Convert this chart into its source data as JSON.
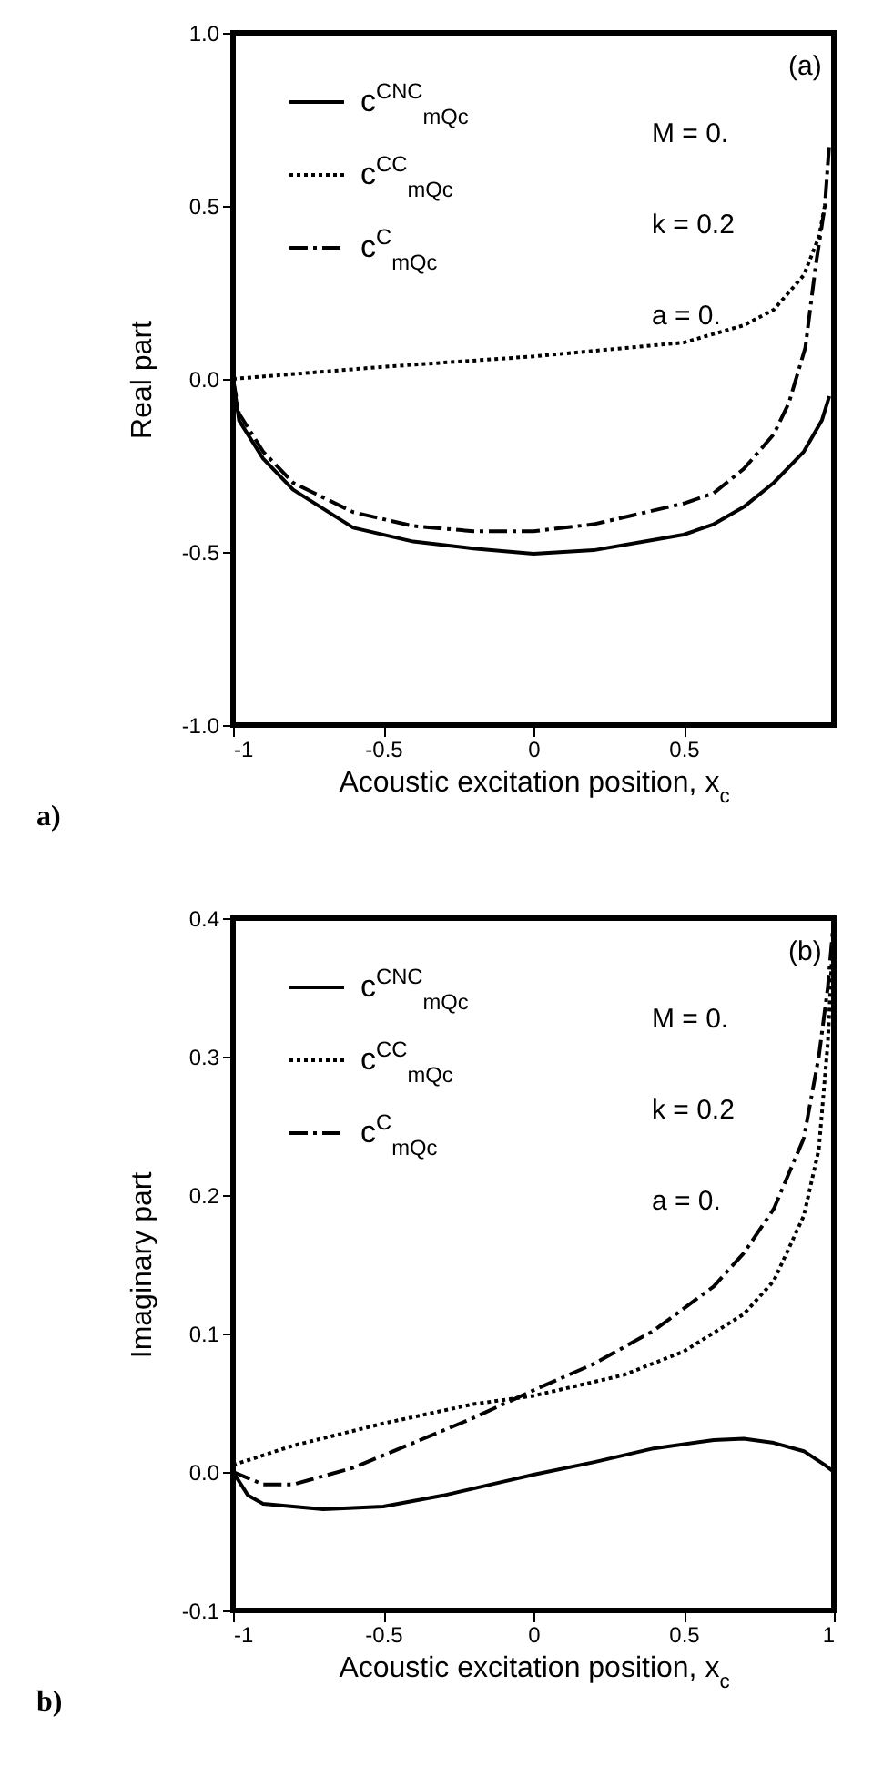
{
  "chart_data": [
    {
      "type": "line",
      "xlabel": "Acoustic excitation position, x$_{c}$",
      "ylabel": "Real part",
      "annotations": [
        "(a)",
        "M = 0.",
        "k = 0.2",
        "a = 0.",
        "a)"
      ],
      "xlim": [
        -1,
        1
      ],
      "ylim": [
        -1,
        1
      ],
      "xticks": [
        -1,
        -0.5,
        0,
        0.5
      ],
      "yticks": [
        {
          "value": -1,
          "label": "-1.0"
        },
        {
          "value": -0.5,
          "label": "-0.5"
        },
        {
          "value": 0,
          "label": "0.0"
        },
        {
          "value": 0.5,
          "label": "0.5"
        },
        {
          "value": 1,
          "label": "1.0"
        }
      ],
      "grid": false,
      "legend": "top left",
      "series": [
        {
          "name": "c$^{CNC}$$_{mQc}$",
          "color": "#000000",
          "line_style": "solid",
          "x": [
            -1,
            -0.98,
            -0.9,
            -0.8,
            -0.6,
            -0.4,
            -0.2,
            0,
            0.2,
            0.4,
            0.5,
            0.6,
            0.7,
            0.8,
            0.9,
            0.96,
            0.985
          ],
          "values": [
            0,
            -0.12,
            -0.23,
            -0.32,
            -0.43,
            -0.47,
            -0.49,
            -0.505,
            -0.495,
            -0.465,
            -0.45,
            -0.42,
            -0.37,
            -0.3,
            -0.21,
            -0.12,
            -0.05
          ]
        },
        {
          "name": "c$^{CC}$$_{mQc}$",
          "color": "#000000",
          "line_style": "dotted",
          "x": [
            -1,
            -0.5,
            0,
            0.5,
            0.7,
            0.8,
            0.9,
            0.95,
            0.97
          ],
          "values": [
            0,
            0.035,
            0.065,
            0.105,
            0.155,
            0.2,
            0.3,
            0.41,
            0.5
          ]
        },
        {
          "name": "c$^{C}$$_{mQc}$",
          "color": "#000000",
          "line_style": "dashed",
          "x": [
            -1,
            -0.98,
            -0.9,
            -0.8,
            -0.6,
            -0.4,
            -0.2,
            0,
            0.2,
            0.4,
            0.5,
            0.6,
            0.7,
            0.8,
            0.85,
            0.905,
            0.94,
            0.97,
            0.985
          ],
          "values": [
            0,
            -0.1,
            -0.21,
            -0.3,
            -0.385,
            -0.425,
            -0.44,
            -0.44,
            -0.42,
            -0.38,
            -0.36,
            -0.33,
            -0.26,
            -0.16,
            -0.07,
            0.09,
            0.33,
            0.5,
            0.68
          ]
        }
      ]
    },
    {
      "type": "line",
      "xlabel": "Acoustic excitation position, x$_{c}$",
      "ylabel": "Imaginary part",
      "annotations": [
        "(b)",
        "M = 0.",
        "k = 0.2",
        "a = 0.",
        "b)"
      ],
      "xlim": [
        -1,
        1
      ],
      "ylim": [
        -0.1,
        0.4
      ],
      "xticks": [
        -1,
        -0.5,
        0,
        0.5,
        1
      ],
      "yticks": [
        {
          "value": -0.1,
          "label": "-0.1"
        },
        {
          "value": 0,
          "label": "0.0"
        },
        {
          "value": 0.1,
          "label": "0.1"
        },
        {
          "value": 0.2,
          "label": "0.2"
        },
        {
          "value": 0.3,
          "label": "0.3"
        },
        {
          "value": 0.4,
          "label": "0.4"
        }
      ],
      "grid": false,
      "legend": "top left",
      "series": [
        {
          "name": "c$^{CNC}$$_{mQc}$",
          "color": "#000000",
          "line_style": "solid",
          "x": [
            -1,
            -0.95,
            -0.9,
            -0.7,
            -0.5,
            -0.3,
            -0.1,
            0,
            0.2,
            0.4,
            0.6,
            0.7,
            0.8,
            0.9,
            0.97,
            1
          ],
          "values": [
            0,
            -0.017,
            -0.023,
            -0.027,
            -0.025,
            -0.017,
            -0.007,
            -0.002,
            0.007,
            0.017,
            0.023,
            0.024,
            0.021,
            0.015,
            0.005,
            0
          ]
        },
        {
          "name": "c$^{CC}$$_{mQc}$",
          "color": "#000000",
          "line_style": "dotted",
          "x": [
            -1,
            -0.8,
            -0.5,
            -0.2,
            0,
            0.3,
            0.5,
            0.7,
            0.8,
            0.9,
            0.95,
            0.98,
            1
          ],
          "values": [
            0.005,
            0.019,
            0.035,
            0.049,
            0.055,
            0.07,
            0.087,
            0.114,
            0.138,
            0.185,
            0.233,
            0.31,
            0.4
          ]
        },
        {
          "name": "c$^{C}$$_{mQc}$",
          "color": "#000000",
          "line_style": "dashed",
          "x": [
            -1,
            -0.9,
            -0.8,
            -0.6,
            -0.4,
            -0.2,
            0,
            0.2,
            0.4,
            0.6,
            0.7,
            0.8,
            0.9,
            0.95,
            0.98,
            1
          ],
          "values": [
            0,
            -0.009,
            -0.009,
            0.003,
            0.021,
            0.039,
            0.059,
            0.078,
            0.102,
            0.134,
            0.158,
            0.19,
            0.241,
            0.3,
            0.35,
            0.4
          ]
        }
      ]
    }
  ]
}
